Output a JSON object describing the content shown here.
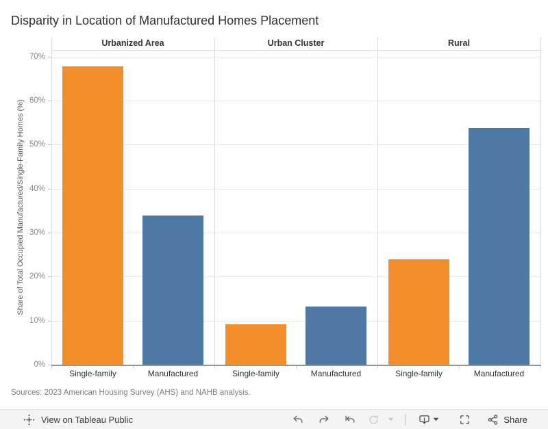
{
  "title": "Disparity in Location of Manufactured Homes Placement",
  "sources": "Sources: 2023 American Housing Survey (AHS) and NAHB analysis.",
  "chart_data": {
    "type": "bar",
    "title": "Disparity in Location of Manufactured Homes Placement",
    "facets": [
      "Urbanized Area",
      "Urban Cluster",
      "Rural"
    ],
    "categories": [
      "Single-family",
      "Manufactured"
    ],
    "series": [
      {
        "name": "Single-family",
        "color": "#F28E2B",
        "values": [
          67.8,
          9.2,
          24.0
        ]
      },
      {
        "name": "Manufactured",
        "color": "#4E79A7",
        "values": [
          33.9,
          13.2,
          53.8
        ]
      }
    ],
    "ylabel": "Share of Total Occupied Manufactured/Single-Family Homes (%)",
    "xlabel": "",
    "ylim": [
      0,
      71.5
    ],
    "yticks": [
      0,
      10,
      20,
      30,
      40,
      50,
      60,
      70
    ],
    "ytick_suffix": "%",
    "grid": true,
    "legend": false
  },
  "toolbar": {
    "view_label": "View on Tableau Public",
    "share_label": "Share",
    "icons": [
      "tableau-logo-icon",
      "undo-icon",
      "redo-icon",
      "revert-icon",
      "refresh-icon",
      "caret-down-icon",
      "download-icon",
      "download-caret-icon",
      "fullscreen-icon",
      "share-icon"
    ]
  },
  "colors": {
    "single_family": "#F28E2B",
    "manufactured": "#4E79A7",
    "axis_text": "#8a8a8a",
    "header_text": "#333333",
    "toolbar_bg": "#f4f4f4",
    "icon_enabled": "#6b6b6b",
    "icon_disabled": "#c9c9c9"
  }
}
